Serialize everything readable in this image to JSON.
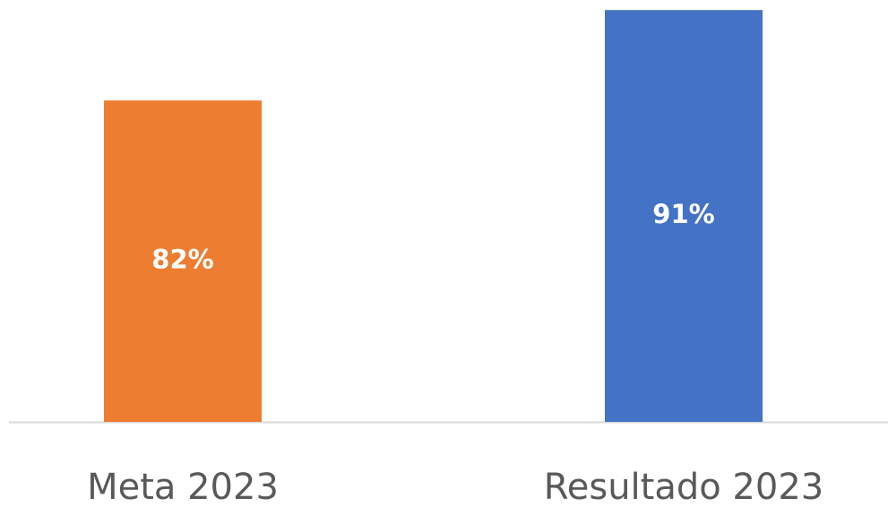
{
  "chart_data": {
    "type": "bar",
    "categories": [
      "Meta 2023",
      "Resultado 2023"
    ],
    "values": [
      82,
      91
    ],
    "value_labels": [
      "82%",
      "91%"
    ],
    "colors": [
      "#ed7d31",
      "#4472c4"
    ],
    "ylim": [
      50,
      92
    ]
  }
}
